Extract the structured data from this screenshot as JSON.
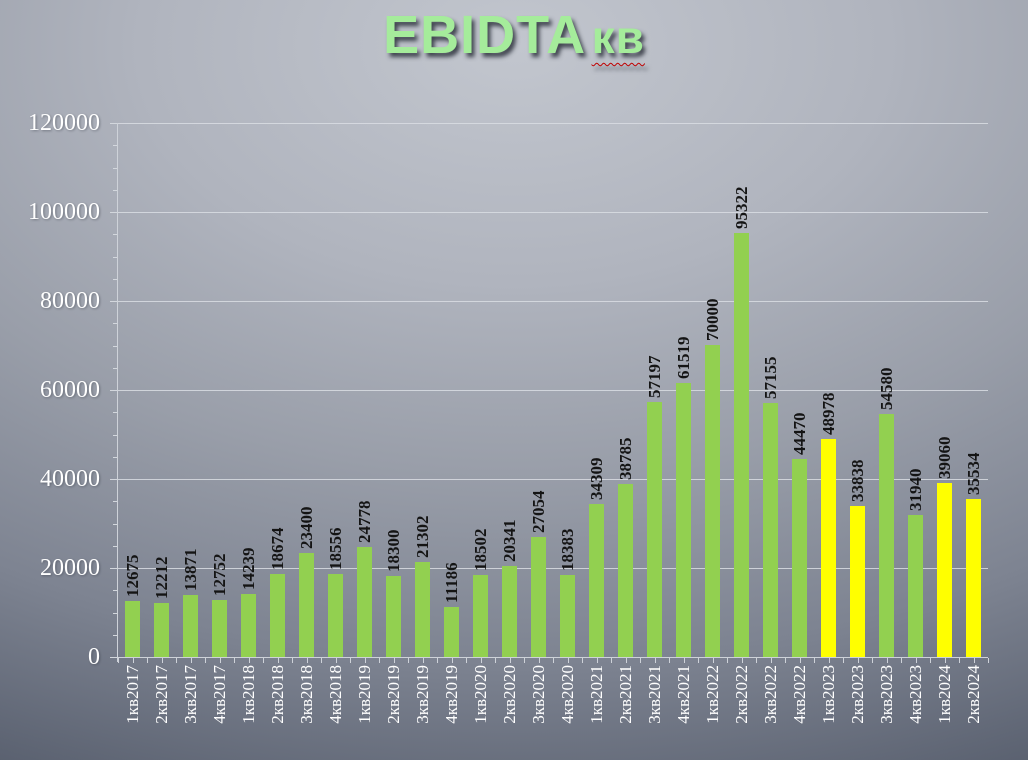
{
  "title": {
    "main": "EBIDTA",
    "sub": "кв"
  },
  "colors": {
    "green": "#92d050",
    "yellow": "#ffff00",
    "title_text": "#a5ec9b",
    "spellcheck_underline": "#c00000",
    "value_label_text": "#141414",
    "axis_text": "#ffffff",
    "gridline": "#d9dde3",
    "background_top": "#c2c6ce",
    "background_bottom": "#3d4452"
  },
  "chart_data": {
    "type": "bar",
    "title": "EBIDTA кв",
    "xlabel": "",
    "ylabel": "",
    "ylim": [
      0,
      120000
    ],
    "ytick_interval": 20000,
    "ytick_minor_interval": 5000,
    "yticks": [
      "0",
      "20000",
      "40000",
      "60000",
      "80000",
      "100000",
      "120000"
    ],
    "grid": true,
    "legend_position": "none",
    "categories": [
      "1кв2017",
      "2кв2017",
      "3кв2017",
      "4кв2017",
      "1кв2018",
      "2кв2018",
      "3кв2018",
      "4кв2018",
      "1кв2019",
      "2кв2019",
      "3кв2019",
      "4кв2019",
      "1кв2020",
      "2кв2020",
      "3кв2020",
      "4кв2020",
      "1кв2021",
      "2кв2021",
      "3кв2021",
      "4кв2021",
      "1кв2022",
      "2кв2022",
      "3кв2022",
      "4кв2022",
      "1кв2023",
      "2кв2023",
      "3кв2023",
      "4кв2023",
      "1кв2024",
      "2кв2024"
    ],
    "values": [
      12675,
      12212,
      13871,
      12752,
      14239,
      18674,
      23400,
      18556,
      24778,
      18300,
      21302,
      11186,
      18502,
      20341,
      27054,
      18383,
      34309,
      38785,
      57197,
      61519,
      70000,
      95322,
      57155,
      44470,
      48978,
      33838,
      54580,
      31940,
      39060,
      35534
    ],
    "bar_colors": [
      "green",
      "green",
      "green",
      "green",
      "green",
      "green",
      "green",
      "green",
      "green",
      "green",
      "green",
      "green",
      "green",
      "green",
      "green",
      "green",
      "green",
      "green",
      "green",
      "green",
      "green",
      "green",
      "green",
      "green",
      "yellow",
      "yellow",
      "green",
      "green",
      "yellow",
      "yellow"
    ]
  }
}
